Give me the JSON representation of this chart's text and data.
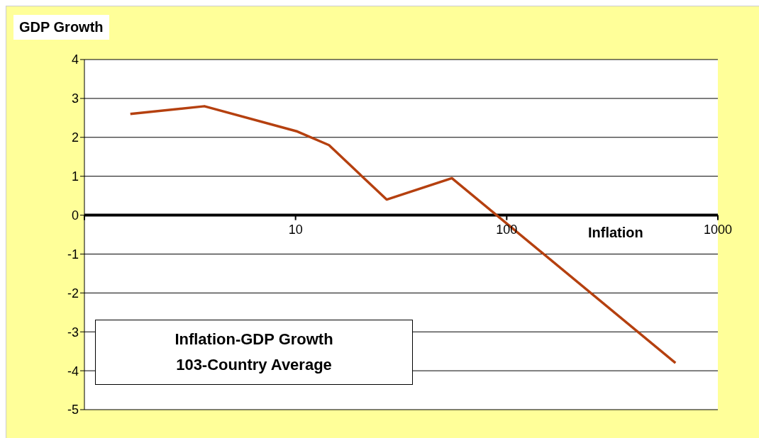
{
  "chart_data": {
    "type": "line",
    "title": "Inflation-GDP Growth",
    "subtitle": "103-Country Average",
    "xlabel": "Inflation",
    "ylabel": "GDP Growth",
    "x": [
      1.65,
      3.7,
      10.2,
      14.4,
      27,
      55,
      630
    ],
    "series": [
      {
        "color": "#b5400f",
        "values": [
          2.6,
          2.8,
          2.15,
          1.8,
          0.4,
          0.95,
          -3.8
        ]
      }
    ],
    "xlim": [
      1,
      1000
    ],
    "xticks": [
      {
        "value": 1,
        "label": null
      },
      10,
      100,
      1000
    ],
    "ylim": [
      -5,
      4
    ],
    "yticks": [
      -5,
      -4,
      -3,
      -2,
      -1,
      0,
      1,
      2,
      3,
      4
    ],
    "log": "x",
    "grid": "y",
    "marker": "none",
    "line_style": "solid"
  }
}
